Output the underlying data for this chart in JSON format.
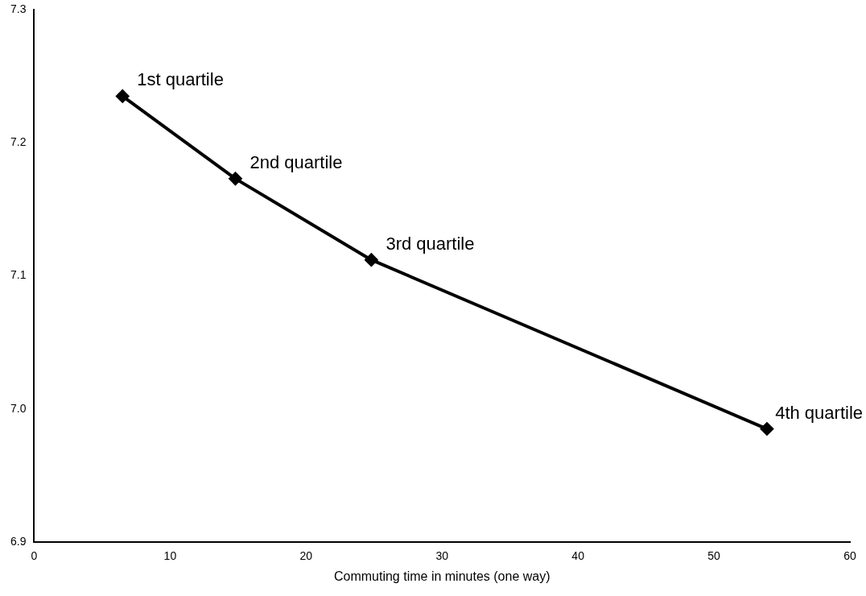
{
  "chart_data": {
    "type": "line",
    "xlabel": "Commuting time in minutes (one way)",
    "x": [
      6.5,
      14.8,
      24.8,
      53.9
    ],
    "series": [
      {
        "color": "#000000",
        "values": [
          7.235,
          7.173,
          7.112,
          6.985
        ]
      }
    ],
    "xlim": [
      0,
      60
    ],
    "xticks": [
      0,
      10,
      20,
      30,
      40,
      50,
      60
    ],
    "ylim": [
      6.9,
      7.3
    ],
    "yticks": [
      6.9,
      {
        "value": 7.0,
        "label": "7.0"
      },
      7.1,
      7.2,
      7.3
    ],
    "marker": "diamond",
    "grid": false,
    "legend": false,
    "annotations": [
      {
        "text": "1st quartile",
        "x": 6.5,
        "y": 7.235
      },
      {
        "text": "2nd quartile",
        "x": 14.8,
        "y": 7.173
      },
      {
        "text": "3rd quartile",
        "x": 24.8,
        "y": 7.112
      },
      {
        "text": "4th quartile",
        "x": 53.9,
        "y": 6.985
      }
    ]
  }
}
